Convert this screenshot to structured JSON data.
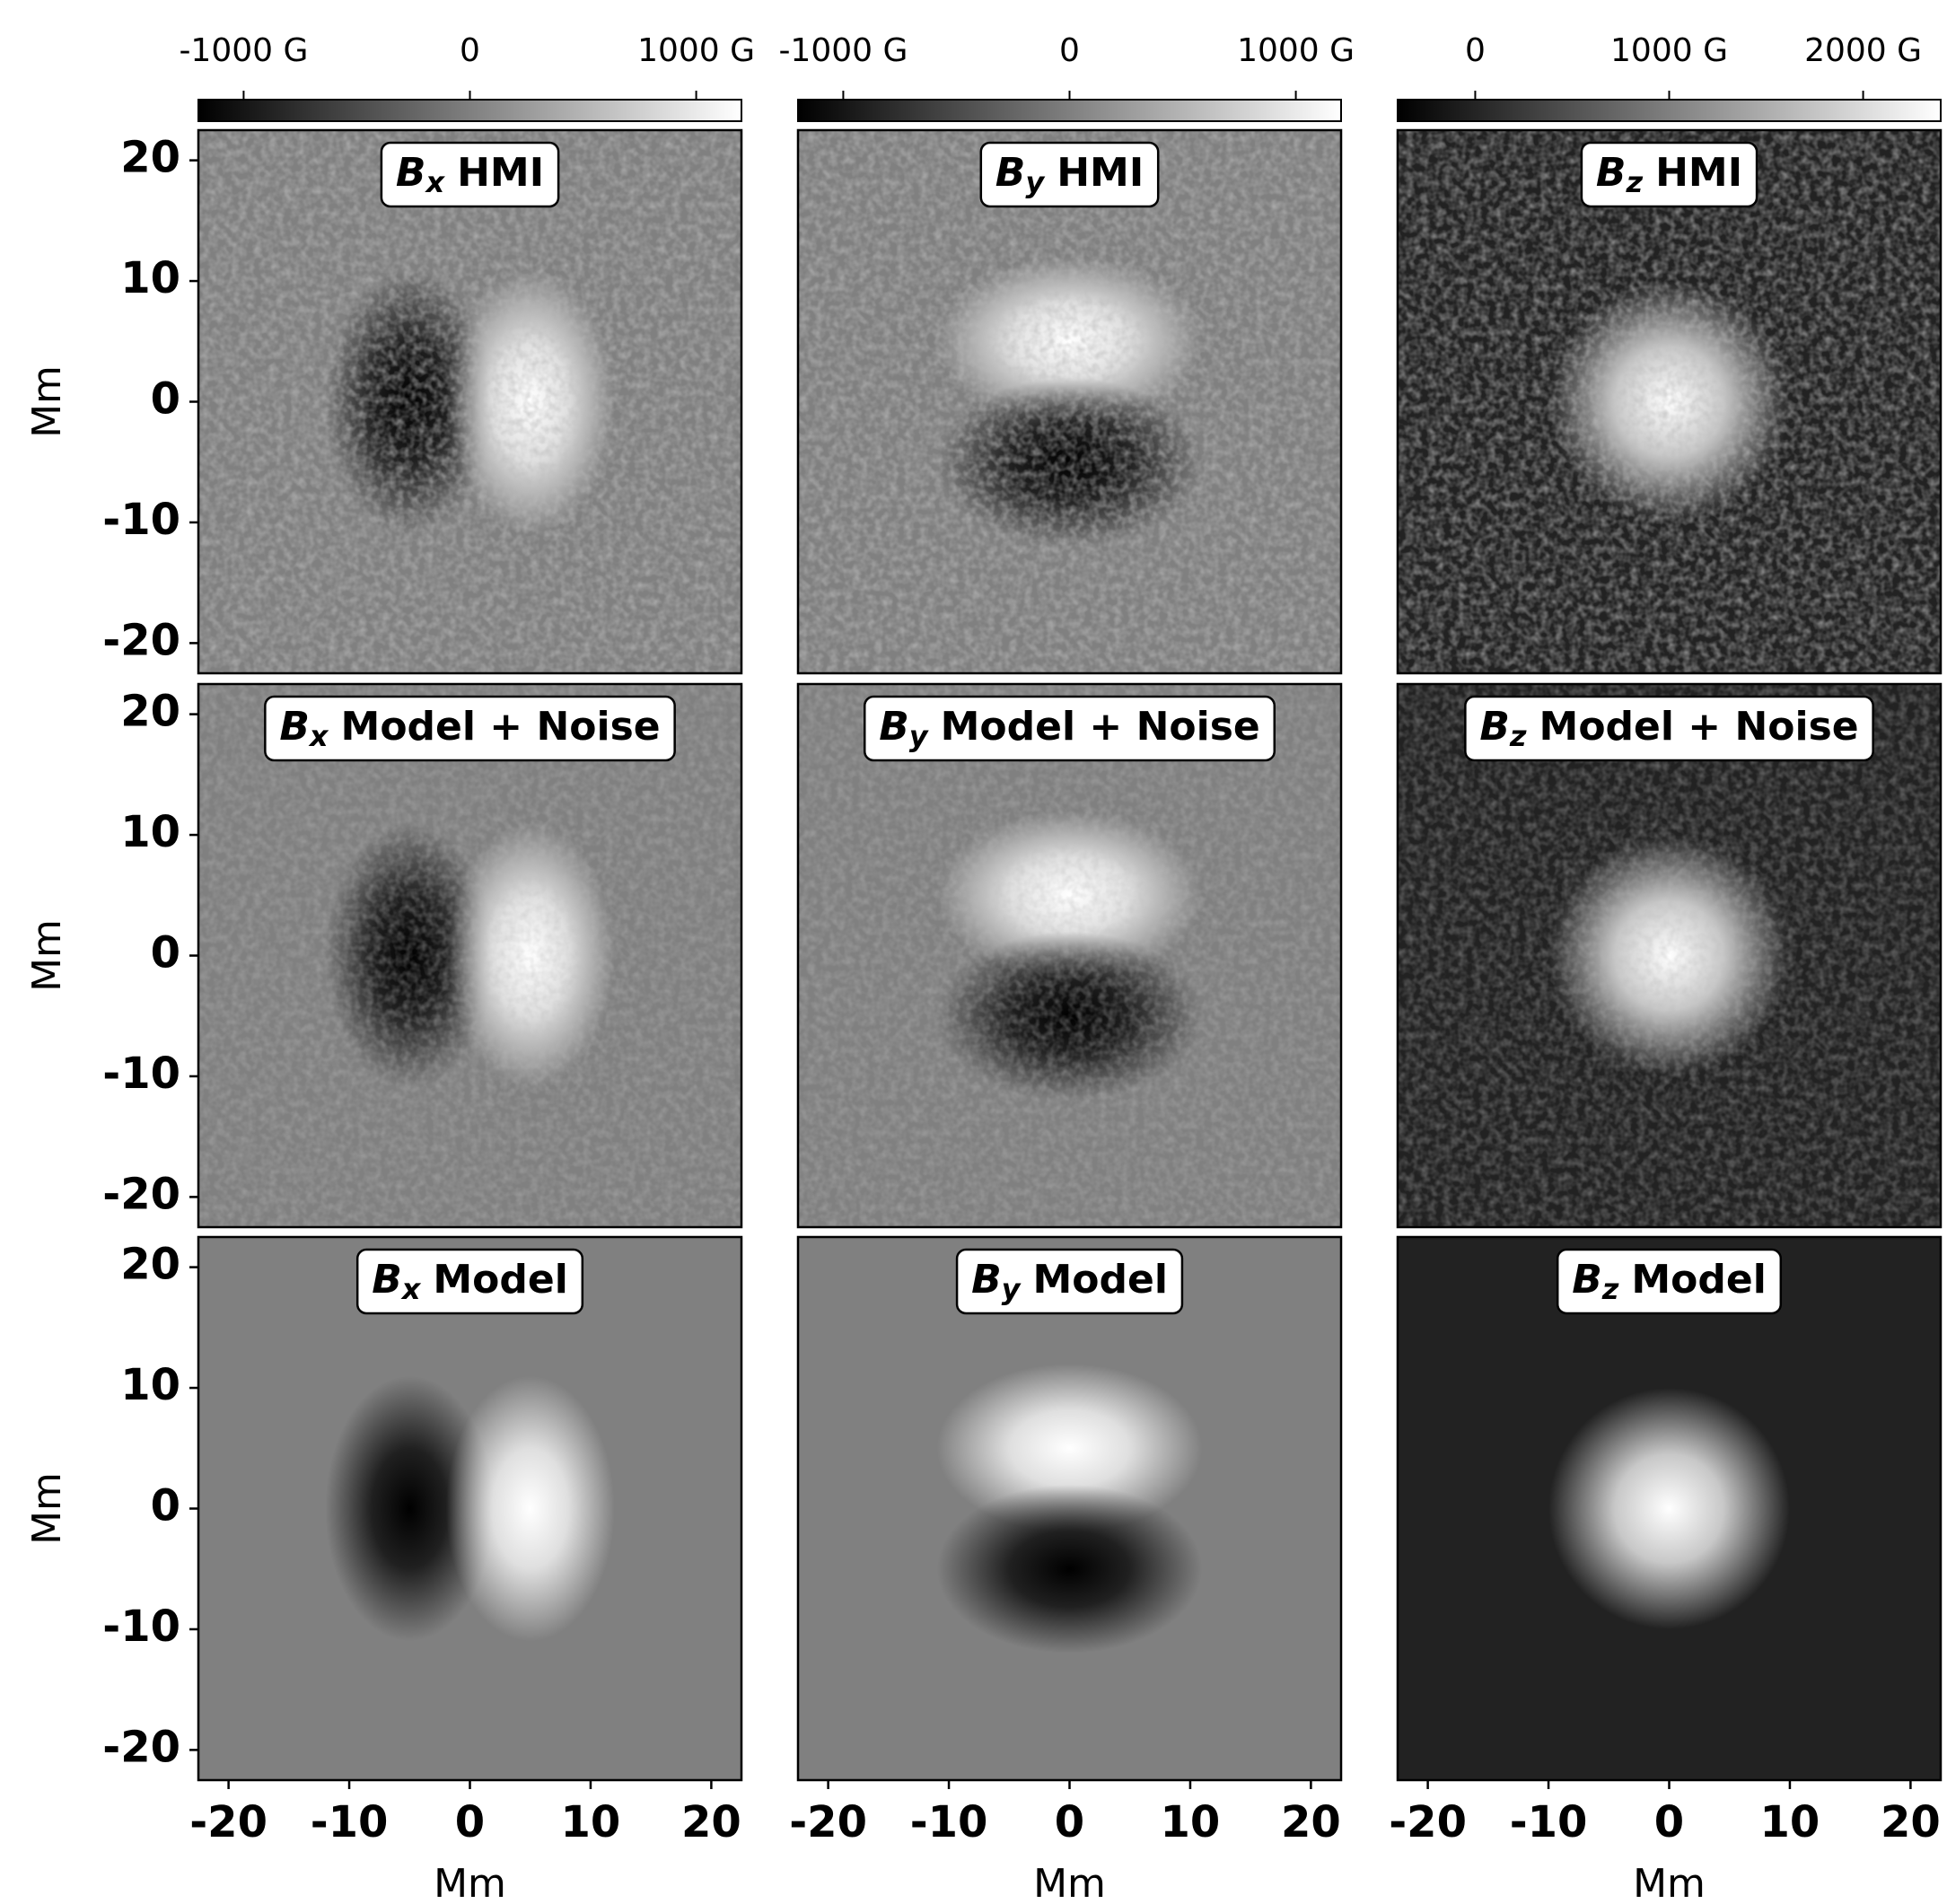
{
  "chart_data": [
    {
      "type": "heatmap",
      "title": {
        "symbol": "B",
        "subscript": "x",
        "text": "HMI"
      },
      "ylabel": "Mm",
      "xlim": [
        -22.5,
        22.5
      ],
      "ylim": [
        -22.5,
        22.5
      ],
      "yticks": [
        -20,
        -10,
        0,
        10,
        20
      ],
      "colorbar": {
        "lim": [
          -1200,
          1200
        ],
        "ticks": [
          {
            "value": -1000,
            "label": "-1000 G"
          },
          0,
          {
            "value": 1000,
            "label": "1000 G"
          }
        ]
      }
    },
    {
      "type": "heatmap",
      "title": {
        "symbol": "B",
        "subscript": "y",
        "text": "HMI"
      },
      "xlim": [
        -22.5,
        22.5
      ],
      "ylim": [
        -22.5,
        22.5
      ],
      "colorbar": {
        "lim": [
          -1200,
          1200
        ],
        "ticks": [
          {
            "value": -1000,
            "label": "-1000 G"
          },
          0,
          {
            "value": 1000,
            "label": "1000 G"
          }
        ]
      }
    },
    {
      "type": "heatmap",
      "title": {
        "symbol": "B",
        "subscript": "z",
        "text": "HMI"
      },
      "xlim": [
        -22.5,
        22.5
      ],
      "ylim": [
        -22.5,
        22.5
      ],
      "colorbar": {
        "lim": [
          -400,
          2400
        ],
        "ticks": [
          0,
          {
            "value": 1000,
            "label": "1000 G"
          },
          {
            "value": 2000,
            "label": "2000 G"
          }
        ]
      }
    },
    {
      "type": "heatmap",
      "title": {
        "symbol": "B",
        "subscript": "x",
        "text": "Model + Noise"
      },
      "ylabel": "Mm",
      "xlim": [
        -22.5,
        22.5
      ],
      "ylim": [
        -22.5,
        22.5
      ],
      "yticks": [
        -20,
        -10,
        0,
        10,
        20
      ]
    },
    {
      "type": "heatmap",
      "title": {
        "symbol": "B",
        "subscript": "y",
        "text": "Model + Noise"
      },
      "xlim": [
        -22.5,
        22.5
      ],
      "ylim": [
        -22.5,
        22.5
      ]
    },
    {
      "type": "heatmap",
      "title": {
        "symbol": "B",
        "subscript": "z",
        "text": "Model + Noise"
      },
      "xlim": [
        -22.5,
        22.5
      ],
      "ylim": [
        -22.5,
        22.5
      ]
    },
    {
      "type": "heatmap",
      "title": {
        "symbol": "B",
        "subscript": "x",
        "text": "Model"
      },
      "xlabel": "Mm",
      "ylabel": "Mm",
      "xlim": [
        -22.5,
        22.5
      ],
      "ylim": [
        -22.5,
        22.5
      ],
      "xticks": [
        -20,
        -10,
        0,
        10,
        20
      ],
      "yticks": [
        -20,
        -10,
        0,
        10,
        20
      ]
    },
    {
      "type": "heatmap",
      "title": {
        "symbol": "B",
        "subscript": "y",
        "text": "Model"
      },
      "xlabel": "Mm",
      "xlim": [
        -22.5,
        22.5
      ],
      "ylim": [
        -22.5,
        22.5
      ],
      "xticks": [
        -20,
        -10,
        0,
        10,
        20
      ]
    },
    {
      "type": "heatmap",
      "title": {
        "symbol": "B",
        "subscript": "z",
        "text": "Model"
      },
      "xlabel": "Mm",
      "xlim": [
        -22.5,
        22.5
      ],
      "ylim": [
        -22.5,
        22.5
      ],
      "xticks": [
        -20,
        -10,
        0,
        10,
        20
      ]
    }
  ]
}
